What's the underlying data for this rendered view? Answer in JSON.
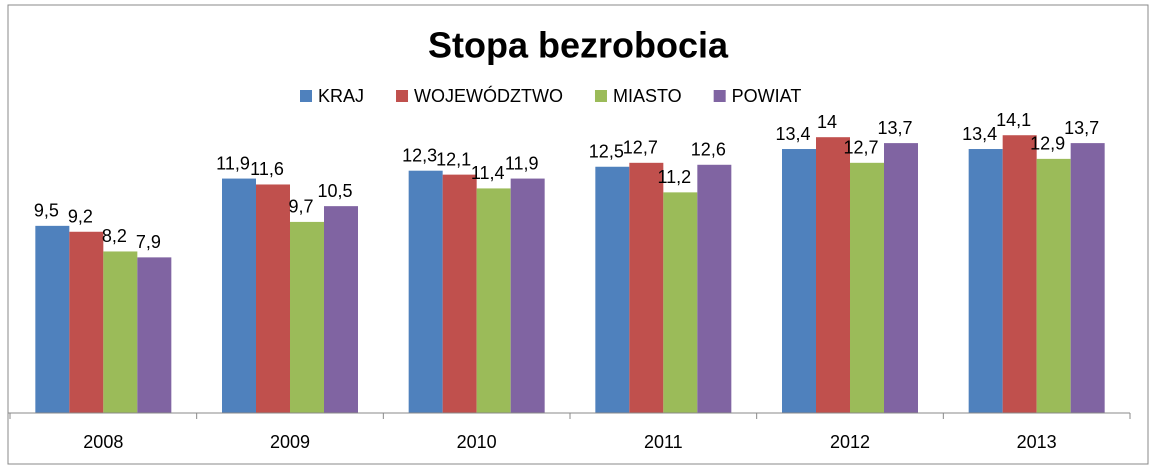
{
  "chart_data": {
    "type": "bar",
    "title": "Stopa bezrobocia",
    "categories": [
      "2008",
      "2009",
      "2010",
      "2011",
      "2012",
      "2013"
    ],
    "series": [
      {
        "name": "KRAJ",
        "color": "#4f81bd",
        "values": [
          9.5,
          11.9,
          12.3,
          12.5,
          13.4,
          13.4
        ],
        "value_labels": [
          "9,5",
          "11,9",
          "12,3",
          "12,5",
          "13,4",
          "13,4"
        ]
      },
      {
        "name": "WOJEWÓDZTWO",
        "color": "#c0504d",
        "values": [
          9.2,
          11.6,
          12.1,
          12.7,
          14,
          14.1
        ],
        "value_labels": [
          "9,2",
          "11,6",
          "12,1",
          "12,7",
          "14",
          "14,1"
        ]
      },
      {
        "name": "MIASTO",
        "color": "#9bbb59",
        "values": [
          8.2,
          9.7,
          11.4,
          11.2,
          12.7,
          12.9
        ],
        "value_labels": [
          "8,2",
          "9,7",
          "11,4",
          "11,2",
          "12,7",
          "12,9"
        ]
      },
      {
        "name": "POWIAT",
        "color": "#8064a2",
        "values": [
          7.9,
          10.5,
          11.9,
          12.6,
          13.7,
          13.7
        ],
        "value_labels": [
          "7,9",
          "10,5",
          "11,9",
          "12,6",
          "13,7",
          "13,7"
        ]
      }
    ],
    "ylim": [
      0,
      20
    ],
    "legend": "top"
  }
}
